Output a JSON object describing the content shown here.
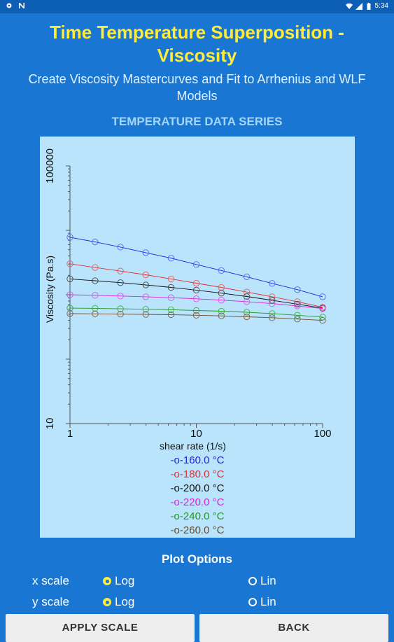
{
  "status_bar": {
    "time": "5:34",
    "left_icons": [
      "settings-icon",
      "n-icon"
    ],
    "right_icons": [
      "wifi-icon",
      "signal-icon",
      "battery-icon"
    ]
  },
  "header": {
    "title_line1": "Time Temperature Superposition -",
    "title_line2": "Viscosity",
    "subtitle": "Create Viscosity Mastercurves and Fit to Arrhenius and WLF Models"
  },
  "section_title": "TEMPERATURE DATA SERIES",
  "chart_data": {
    "type": "line",
    "xlabel": "shear rate (1/s)",
    "ylabel": "Viscosity (Pa.s)",
    "x_scale": "log",
    "y_scale": "log",
    "xlim": [
      1,
      100
    ],
    "ylim": [
      10,
      100000
    ],
    "x_ticks": [
      "1",
      "10",
      "100"
    ],
    "y_ticks": [
      "10",
      "100000"
    ],
    "x": [
      1,
      1.58,
      2.51,
      3.98,
      6.31,
      10,
      15.8,
      25.1,
      39.8,
      63.1,
      100
    ],
    "series": [
      {
        "name": "-o-160.0 °C",
        "color": "#2222dd",
        "marker_color": "#5566ee",
        "values": [
          7800,
          6600,
          5500,
          4500,
          3700,
          2950,
          2380,
          1900,
          1500,
          1200,
          930
        ]
      },
      {
        "name": "-o-180.0 °C",
        "color": "#e03030",
        "marker_color": "#e06060",
        "values": [
          3020,
          2650,
          2330,
          2040,
          1760,
          1510,
          1300,
          1100,
          930,
          780,
          640
        ]
      },
      {
        "name": "-o-200.0 °C",
        "color": "#111111",
        "marker_color": "#444444",
        "values": [
          1760,
          1650,
          1540,
          1420,
          1300,
          1180,
          1060,
          940,
          820,
          715,
          620
        ]
      },
      {
        "name": "-o-220.0 °C",
        "color": "#dd22dd",
        "marker_color": "#dd55dd",
        "values": [
          1000,
          980,
          955,
          930,
          900,
          865,
          825,
          780,
          730,
          670,
          610
        ]
      },
      {
        "name": "-o-240.0 °C",
        "color": "#229922",
        "marker_color": "#44aa44",
        "values": [
          620,
          615,
          605,
          595,
          585,
          570,
          555,
          535,
          510,
          480,
          450
        ]
      },
      {
        "name": "-o-260.0 °C",
        "color": "#6b4a2e",
        "marker_color": "#7d5c42",
        "values": [
          510,
          505,
          500,
          495,
          490,
          480,
          470,
          455,
          440,
          420,
          400
        ]
      }
    ]
  },
  "plot_options": {
    "title": "Plot Options",
    "x_scale": {
      "label": "x scale",
      "options": [
        "Log",
        "Lin"
      ],
      "selected": "Log"
    },
    "y_scale": {
      "label": "y scale",
      "options": [
        "Log",
        "Lin"
      ],
      "selected": "Log"
    }
  },
  "buttons": {
    "apply": "APPLY SCALE",
    "back": "BACK"
  }
}
